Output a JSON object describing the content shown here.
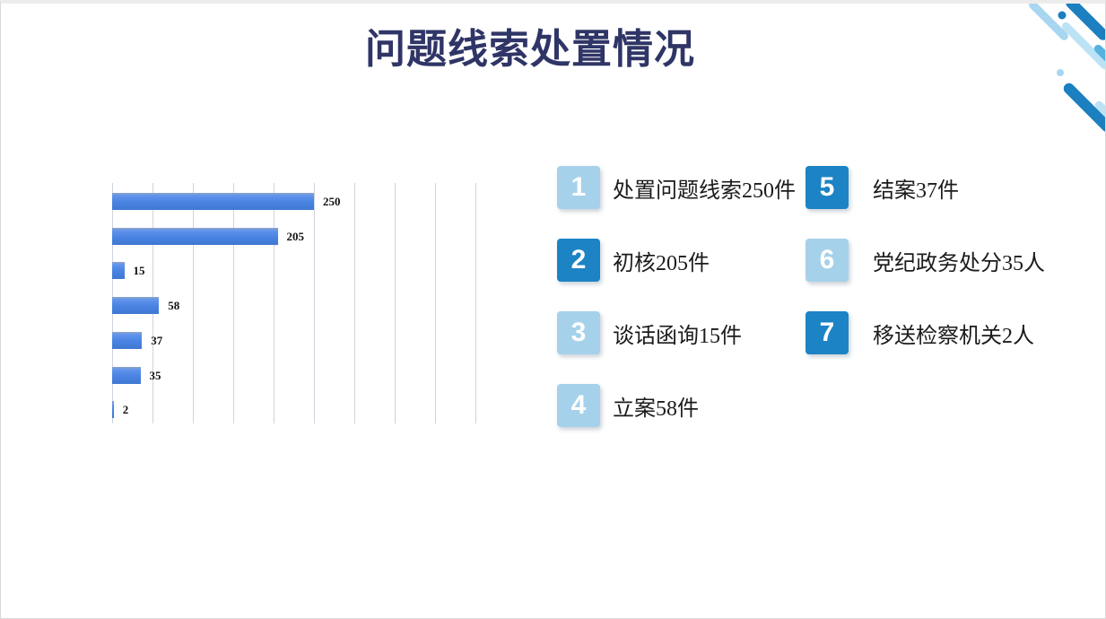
{
  "slide": {
    "title": "问题线索处置情况"
  },
  "theme": {
    "title_color": "#2f3566",
    "bar_color": "#4a84e0",
    "gridline_color": "#cdd5dd",
    "legend_square_light": "#a6d1ea",
    "legend_square_dark": "#1c83c5",
    "decor_dark_blue": "#1b7fc0",
    "decor_light_blue": "#a8d6f0",
    "decor_medium_blue": "#57b2e2",
    "background": "#ffffff"
  },
  "chart_data": {
    "type": "bar",
    "orientation": "horizontal",
    "title": "问题线索处置情况",
    "categories": [
      "处置问题线索",
      "初核",
      "谈话函询",
      "立案",
      "结案",
      "党纪政务处分",
      "移送检察机关"
    ],
    "values": [
      250,
      205,
      15,
      58,
      37,
      35,
      2
    ],
    "data_labels": [
      "250",
      "205",
      "15",
      "58",
      "37",
      "35",
      "2"
    ],
    "xlim": [
      0,
      450
    ],
    "gridline_step": 50,
    "grid": true,
    "xlabel": "",
    "ylabel": "",
    "legend_position": "none",
    "bar_color": "#4a84e0"
  },
  "legend": {
    "items": [
      {
        "number": "1",
        "label": "处置问题线索250件",
        "variant": "light"
      },
      {
        "number": "2",
        "label": "初核205件",
        "variant": "dark"
      },
      {
        "number": "3",
        "label": "谈话函询15件",
        "variant": "light"
      },
      {
        "number": "4",
        "label": "立案58件",
        "variant": "light"
      },
      {
        "number": "5",
        "label": "结案37件",
        "variant": "dark"
      },
      {
        "number": "6",
        "label": "党纪政务处分35人",
        "variant": "light"
      },
      {
        "number": "7",
        "label": "移送检察机关2人",
        "variant": "dark"
      }
    ]
  }
}
